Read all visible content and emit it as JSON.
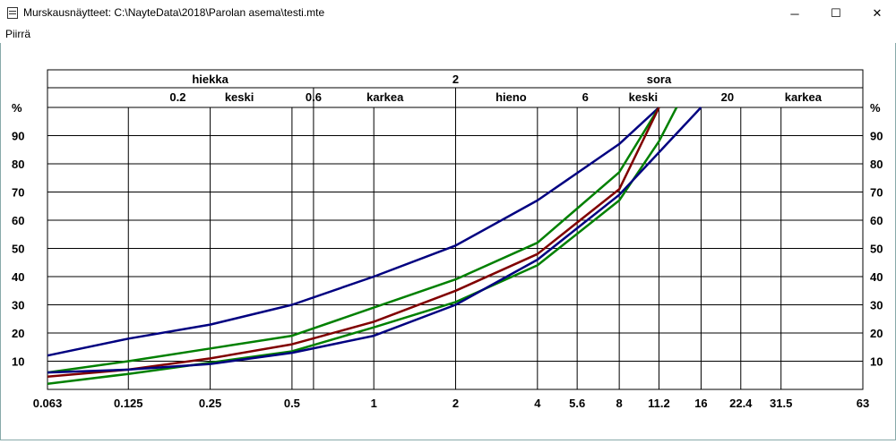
{
  "window": {
    "title": "Murskausnäytteet: C:\\NayteData\\2018\\Parolan asema\\testi.mte",
    "minimize_icon": "minimize-icon",
    "maximize_icon": "maximize-icon",
    "close_icon": "close-icon"
  },
  "menu": {
    "items": [
      "Piirrä"
    ]
  },
  "chart_data": {
    "type": "line",
    "x_scale": "log",
    "xlim": [
      0.063,
      63
    ],
    "ylim": [
      0,
      100
    ],
    "x_ticks": [
      0.063,
      0.125,
      0.25,
      0.5,
      1,
      2,
      4,
      5.6,
      8,
      11.2,
      16,
      22.4,
      31.5,
      63
    ],
    "x_tick_labels": [
      "0.063",
      "0.125",
      "0.25",
      "0.5",
      "1",
      "2",
      "4",
      "5.6",
      "8",
      "11.2",
      "16",
      "22.4",
      "31.5",
      "63"
    ],
    "y_ticks": [
      10,
      20,
      30,
      40,
      50,
      60,
      70,
      80,
      90
    ],
    "y_tick_labels": [
      "10",
      "20",
      "30",
      "40",
      "50",
      "60",
      "70",
      "80",
      "90"
    ],
    "y_unit_label": "%",
    "grid": true,
    "header": {
      "row1": [
        {
          "text": "hiekka",
          "x": 0.25
        },
        {
          "text": "2",
          "x": 2
        },
        {
          "text": "sora",
          "x": 11.2
        }
      ],
      "row2": [
        {
          "text": "0.2",
          "x": 0.19
        },
        {
          "text": "keski",
          "x": 0.32
        },
        {
          "text": "0.6",
          "x": 0.6
        },
        {
          "text": "karkea",
          "x": 1.1
        },
        {
          "text": "hieno",
          "x": 3.2
        },
        {
          "text": "6",
          "x": 6
        },
        {
          "text": "keski",
          "x": 9.8
        },
        {
          "text": "20",
          "x": 20
        },
        {
          "text": "karkea",
          "x": 38
        }
      ]
    },
    "series": [
      {
        "color": "#000080",
        "x": [
          0.063,
          0.125,
          0.25,
          0.5,
          1,
          2,
          4,
          8,
          11.2
        ],
        "y": [
          12,
          18,
          23,
          30,
          40,
          51,
          67,
          87,
          100
        ]
      },
      {
        "color": "#008000",
        "x": [
          0.063,
          0.125,
          0.25,
          0.5,
          1,
          2,
          4,
          8,
          11.2
        ],
        "y": [
          6,
          10,
          14.5,
          19,
          29,
          39,
          52,
          77,
          100
        ]
      },
      {
        "color": "#800000",
        "x": [
          0.063,
          0.125,
          0.25,
          0.5,
          1,
          2,
          4,
          8,
          11.2
        ],
        "y": [
          4.5,
          7,
          11,
          16,
          24,
          35,
          48,
          71,
          100
        ]
      },
      {
        "color": "#008000",
        "x": [
          0.063,
          0.125,
          0.25,
          0.5,
          1,
          2,
          4,
          8,
          11.2,
          13
        ],
        "y": [
          2,
          5.5,
          9.5,
          13.5,
          22,
          31,
          44,
          67,
          88,
          100
        ]
      },
      {
        "color": "#000080",
        "x": [
          0.063,
          0.125,
          0.25,
          0.5,
          1,
          2,
          4,
          8,
          16
        ],
        "y": [
          6,
          7,
          9,
          13,
          19,
          30,
          46,
          69,
          100
        ]
      }
    ]
  }
}
